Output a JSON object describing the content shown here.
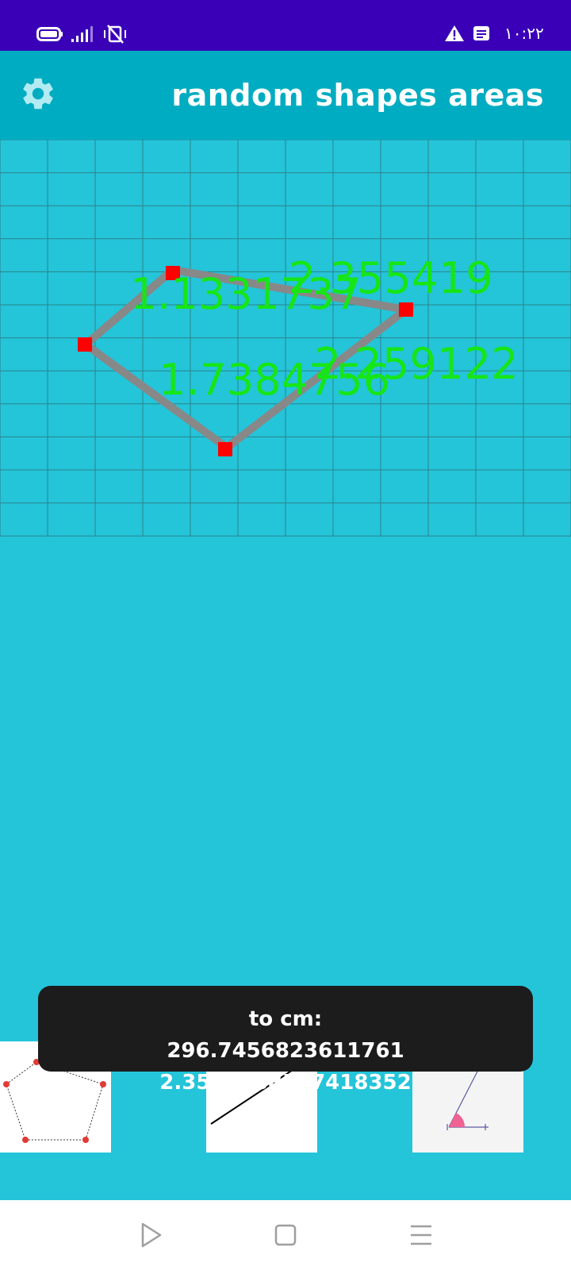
{
  "status_bar": {
    "time": "١٠:٢٢",
    "icons": [
      "battery-icon",
      "signal-icon",
      "vibrate-mute-icon",
      "warning-icon",
      "notification-icon"
    ],
    "background": "#3A00B8"
  },
  "app_bar": {
    "title": "random shapes areas",
    "settings_icon": "gear-icon",
    "background": "#00ACC1"
  },
  "canvas": {
    "background": "#24C4D9",
    "grid_lines": true,
    "shape_color": "#888888",
    "vertex_color": "#FF0000",
    "label_color": "#16E616",
    "side_lengths": [
      "1.1331737",
      "2.355419",
      "1.7384756",
      "2.259122"
    ]
  },
  "toast": {
    "line1": "to cm:",
    "line2": "296.7456823611761 2.3554188537418352"
  },
  "thumbnails": [
    {
      "name": "polygon-shape",
      "icon": "pentagon-icon"
    },
    {
      "name": "line-shape",
      "icon": "line-icon"
    },
    {
      "name": "angle-shape",
      "icon": "angle-icon"
    }
  ],
  "nav_bar": {
    "buttons": [
      "back-icon",
      "home-icon",
      "menu-icon"
    ]
  }
}
